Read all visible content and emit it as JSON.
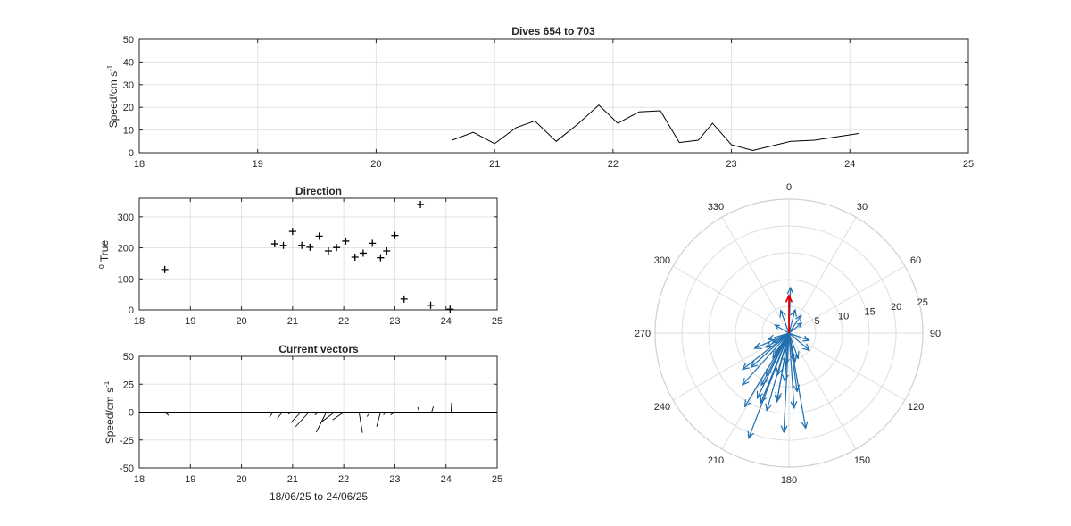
{
  "chart_data": [
    {
      "id": "speed",
      "type": "line",
      "title": "Dives 654 to 703",
      "xlabel": "",
      "ylabel": "Speed/cm s",
      "ylabel_superscript": "-1",
      "xlim": [
        18,
        25
      ],
      "ylim": [
        0,
        50
      ],
      "xticks": [
        18,
        19,
        20,
        21,
        22,
        23,
        24,
        25
      ],
      "yticks": [
        0,
        10,
        20,
        30,
        40,
        50
      ],
      "grid": true,
      "series": [
        {
          "color": "#000000",
          "x": [
            20.64,
            20.82,
            21.0,
            21.18,
            21.34,
            21.52,
            21.7,
            21.88,
            22.04,
            22.22,
            22.4,
            22.56,
            22.72,
            22.84,
            23.0,
            23.18,
            23.5,
            23.7,
            24.08
          ],
          "y": [
            5.5,
            9.0,
            4.0,
            11.0,
            14.0,
            5.0,
            12.5,
            21.0,
            13.0,
            18.0,
            18.5,
            4.5,
            5.5,
            13.0,
            3.5,
            1.0,
            5.0,
            5.5,
            8.5
          ]
        }
      ]
    },
    {
      "id": "direction",
      "type": "scatter",
      "title": "Direction",
      "xlabel": "",
      "ylabel": "True",
      "ylabel_prefix": "o",
      "xlim": [
        18,
        25
      ],
      "ylim": [
        0,
        360
      ],
      "xticks": [
        18,
        19,
        20,
        21,
        22,
        23,
        24,
        25
      ],
      "yticks": [
        0,
        100,
        200,
        300
      ],
      "grid": true,
      "marker": "+",
      "x": [
        18.5,
        20.65,
        20.82,
        21.0,
        21.18,
        21.34,
        21.52,
        21.7,
        21.86,
        22.04,
        22.22,
        22.38,
        22.56,
        22.72,
        22.84,
        23.0,
        23.18,
        23.5,
        23.7,
        24.08
      ],
      "y": [
        130,
        213,
        208,
        253,
        208,
        202,
        238,
        190,
        201,
        222,
        170,
        183,
        215,
        168,
        190,
        240,
        35,
        340,
        15,
        2
      ]
    },
    {
      "id": "vectors",
      "type": "quiver",
      "title": "Current vectors",
      "xlabel": "18/06/25 to 24/06/25",
      "ylabel": "Speed/cm s",
      "ylabel_superscript": "-1",
      "xlim": [
        18,
        25
      ],
      "ylim": [
        -50,
        50
      ],
      "xticks": [
        18,
        19,
        20,
        21,
        22,
        23,
        24,
        25
      ],
      "yticks": [
        -50,
        -25,
        0,
        25,
        50
      ],
      "grid": true,
      "vectors": [
        {
          "t": 18.5,
          "u": 3.5,
          "v": -3.0
        },
        {
          "t": 20.62,
          "u": -3.5,
          "v": -4.5
        },
        {
          "t": 20.8,
          "u": -4.5,
          "v": -5.5
        },
        {
          "t": 20.98,
          "u": -3.0,
          "v": -1.8
        },
        {
          "t": 21.16,
          "u": -9.0,
          "v": -9.5
        },
        {
          "t": 21.32,
          "u": -12.0,
          "v": -13.0
        },
        {
          "t": 21.5,
          "u": -3.0,
          "v": -2.5
        },
        {
          "t": 21.66,
          "u": -9.0,
          "v": -18.0
        },
        {
          "t": 21.82,
          "u": -12.0,
          "v": -9.0
        },
        {
          "t": 22.0,
          "u": -10.0,
          "v": -7.0
        },
        {
          "t": 22.3,
          "u": 3.0,
          "v": -18.5
        },
        {
          "t": 22.52,
          "u": -3.0,
          "v": -4.0
        },
        {
          "t": 22.72,
          "u": -3.5,
          "v": -13.0
        },
        {
          "t": 22.82,
          "u": -2.0,
          "v": -2.5
        },
        {
          "t": 23.0,
          "u": -4.0,
          "v": -2.5
        },
        {
          "t": 23.48,
          "u": -1.5,
          "v": 4.5
        },
        {
          "t": 23.72,
          "u": 1.5,
          "v": 5.0
        },
        {
          "t": 24.1,
          "u": 0.4,
          "v": 8.5
        }
      ]
    },
    {
      "id": "polar",
      "type": "polar-quiver",
      "title": "",
      "orientation": "north-up-clockwise",
      "rlim": [
        0,
        25
      ],
      "rticks": [
        5,
        10,
        15,
        20,
        25
      ],
      "angle_ticks": [
        0,
        30,
        60,
        90,
        120,
        150,
        180,
        210,
        240,
        270,
        300,
        330
      ],
      "grid": true,
      "mean_vector": {
        "direction": 0,
        "speed": 7.0,
        "color": "#e50000"
      },
      "vector_color": "#1f6fb0",
      "vectors": [
        {
          "direction": 213,
          "speed": 5.5
        },
        {
          "direction": 208,
          "speed": 9.0
        },
        {
          "direction": 253,
          "speed": 4.0
        },
        {
          "direction": 208,
          "speed": 11.0
        },
        {
          "direction": 202,
          "speed": 14.0
        },
        {
          "direction": 238,
          "speed": 5.0
        },
        {
          "direction": 190,
          "speed": 12.5
        },
        {
          "direction": 201,
          "speed": 21.0
        },
        {
          "direction": 222,
          "speed": 13.0
        },
        {
          "direction": 170,
          "speed": 18.0
        },
        {
          "direction": 183,
          "speed": 18.5
        },
        {
          "direction": 215,
          "speed": 4.5
        },
        {
          "direction": 168,
          "speed": 5.5
        },
        {
          "direction": 190,
          "speed": 13.0
        },
        {
          "direction": 240,
          "speed": 3.5
        },
        {
          "direction": 130,
          "speed": 5.0
        },
        {
          "direction": 35,
          "speed": 4.0
        },
        {
          "direction": 340,
          "speed": 4.5
        },
        {
          "direction": 15,
          "speed": 4.5
        },
        {
          "direction": 2,
          "speed": 8.5
        },
        {
          "direction": 196,
          "speed": 15.0
        },
        {
          "direction": 206,
          "speed": 13.5
        },
        {
          "direction": 185,
          "speed": 9.0
        },
        {
          "direction": 228,
          "speed": 9.5
        },
        {
          "direction": 160,
          "speed": 5.0
        },
        {
          "direction": 176,
          "speed": 14.0
        },
        {
          "direction": 186,
          "speed": 6.0
        },
        {
          "direction": 232,
          "speed": 11.0
        },
        {
          "direction": 211,
          "speed": 16.0
        },
        {
          "direction": 246,
          "speed": 7.0
        },
        {
          "direction": 195,
          "speed": 8.0
        },
        {
          "direction": 172,
          "speed": 11.0
        },
        {
          "direction": 110,
          "speed": 4.0
        },
        {
          "direction": 300,
          "speed": 3.0
        },
        {
          "direction": 52,
          "speed": 3.0
        }
      ]
    }
  ]
}
